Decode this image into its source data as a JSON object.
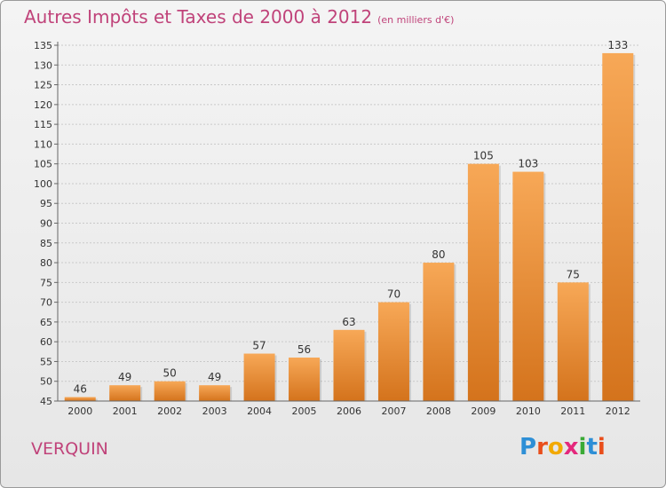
{
  "header": {
    "title": "Autres Impôts et Taxes de 2000 à 2012",
    "unit": "(en milliers d'€)"
  },
  "footer": {
    "commune": "VERQUIN",
    "logo_letters": [
      "P",
      "r",
      "o",
      "x",
      "i",
      "t",
      "i"
    ],
    "logo_colors": [
      "#2e8fd6",
      "#e94e1b",
      "#f2a900",
      "#e4287c",
      "#3aaa35",
      "#2e8fd6",
      "#e94e1b"
    ]
  },
  "chart_data": {
    "type": "bar",
    "title": "Autres Impôts et Taxes de 2000 à 2012",
    "subtitle": "(en milliers d'€)",
    "categories": [
      "2000",
      "2001",
      "2002",
      "2003",
      "2004",
      "2005",
      "2006",
      "2007",
      "2008",
      "2009",
      "2010",
      "2011",
      "2012"
    ],
    "values": [
      46,
      49,
      50,
      49,
      57,
      56,
      63,
      70,
      80,
      105,
      103,
      75,
      133
    ],
    "ylim": [
      45,
      135
    ],
    "yticks": [
      45,
      50,
      55,
      60,
      65,
      70,
      75,
      80,
      85,
      90,
      95,
      100,
      105,
      110,
      115,
      120,
      125,
      130,
      135
    ],
    "grid": true,
    "bar_color_top": "#f7a857",
    "bar_color_bottom": "#d4731c"
  }
}
